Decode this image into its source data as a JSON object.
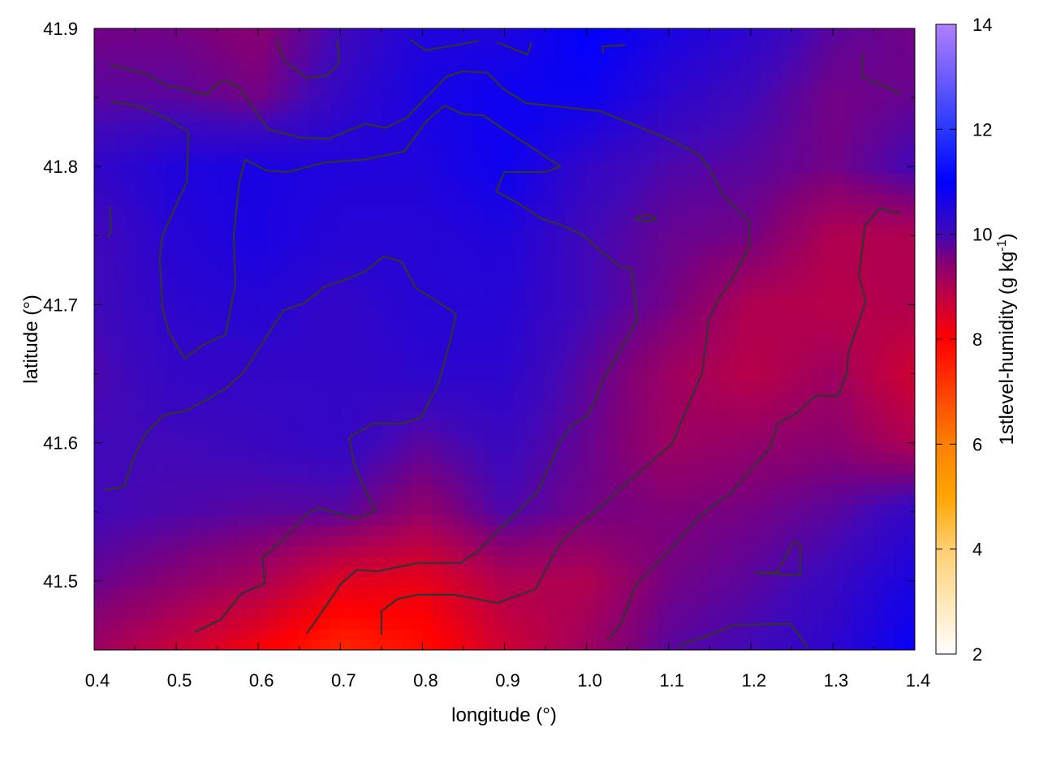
{
  "chart_data": {
    "type": "heatmap",
    "title": "",
    "xlabel": "longitude (°)",
    "ylabel": "latitude (°)",
    "colorbar_label": "1stlevel-humidity (g kg",
    "colorbar_label_sup": "-1",
    "colorbar_label_end": ")",
    "xlim": [
      0.4,
      1.4
    ],
    "ylim": [
      41.45,
      41.9
    ],
    "clim": [
      2,
      14
    ],
    "x_ticks": [
      "0.4",
      "0.5",
      "0.6",
      "0.7",
      "0.8",
      "0.9",
      "1.0",
      "1.1",
      "1.2",
      "1.3",
      "1.4"
    ],
    "y_ticks": [
      "41.5",
      "41.6",
      "41.7",
      "41.8",
      "41.9"
    ],
    "colorbar_ticks": [
      "2",
      "4",
      "6",
      "8",
      "10",
      "12",
      "14"
    ],
    "colormap": [
      {
        "v": 2,
        "c": "#ffffff"
      },
      {
        "v": 4,
        "c": "#ffcf70"
      },
      {
        "v": 5,
        "c": "#ffa500"
      },
      {
        "v": 6,
        "c": "#ff8000"
      },
      {
        "v": 7,
        "c": "#ff4000"
      },
      {
        "v": 8,
        "c": "#ff0000"
      },
      {
        "v": 9,
        "c": "#b00050"
      },
      {
        "v": 9.5,
        "c": "#800078"
      },
      {
        "v": 10,
        "c": "#4008b8"
      },
      {
        "v": 11,
        "c": "#0000ff"
      },
      {
        "v": 12,
        "c": "#2838ff"
      },
      {
        "v": 14,
        "c": "#b080ff"
      }
    ],
    "grid_lon": [
      0.4,
      0.5,
      0.6,
      0.7,
      0.8,
      0.9,
      1.0,
      1.1,
      1.2,
      1.3,
      1.4
    ],
    "grid_lat": [
      41.9,
      41.85,
      41.8,
      41.75,
      41.7,
      41.65,
      41.6,
      41.55,
      41.5,
      41.45
    ],
    "values": [
      [
        9.6,
        9.6,
        9.4,
        10.0,
        10.5,
        10.5,
        11.0,
        10.6,
        10.3,
        9.8,
        9.6
      ],
      [
        9.8,
        9.8,
        9.6,
        10.2,
        10.6,
        10.8,
        10.8,
        10.3,
        10.0,
        9.6,
        9.7
      ],
      [
        10.2,
        10.5,
        10.6,
        10.5,
        10.5,
        10.8,
        10.2,
        9.9,
        9.8,
        9.6,
        10.0
      ],
      [
        10.0,
        10.4,
        10.6,
        10.4,
        10.4,
        10.5,
        10.0,
        9.7,
        9.6,
        9.0,
        9.0
      ],
      [
        10.0,
        10.3,
        10.4,
        10.2,
        10.4,
        10.4,
        10.0,
        9.6,
        9.0,
        8.9,
        9.0
      ],
      [
        9.9,
        10.2,
        10.2,
        10.2,
        10.3,
        10.3,
        9.8,
        9.2,
        8.9,
        9.2,
        8.6
      ],
      [
        10.0,
        10.0,
        10.1,
        10.2,
        9.8,
        10.1,
        9.7,
        9.2,
        9.3,
        9.4,
        9.0
      ],
      [
        10.0,
        9.9,
        9.8,
        9.8,
        9.3,
        9.9,
        9.6,
        9.5,
        9.6,
        9.8,
        10.2
      ],
      [
        9.7,
        9.4,
        9.1,
        8.4,
        8.3,
        9.0,
        9.0,
        9.6,
        9.8,
        10.1,
        10.6
      ],
      [
        9.2,
        8.7,
        8.1,
        7.4,
        7.8,
        8.6,
        9.2,
        9.8,
        10.0,
        10.3,
        10.9
      ]
    ],
    "contour_color": "#333333",
    "contours": [
      [
        [
          0.419,
          41.874
        ],
        [
          0.463,
          41.867
        ],
        [
          0.488,
          41.859
        ],
        [
          0.537,
          41.852
        ],
        [
          0.55,
          41.86
        ],
        [
          0.562,
          41.862
        ],
        [
          0.577,
          41.857
        ],
        [
          0.612,
          41.827
        ],
        [
          0.651,
          41.821
        ],
        [
          0.686,
          41.82
        ],
        [
          0.73,
          41.831
        ],
        [
          0.755,
          41.828
        ],
        [
          0.78,
          41.835
        ],
        [
          0.829,
          41.865
        ],
        [
          0.849,
          41.869
        ],
        [
          0.879,
          41.868
        ],
        [
          0.899,
          41.856
        ],
        [
          0.926,
          41.846
        ],
        [
          1.017,
          41.84
        ],
        [
          1.096,
          41.821
        ],
        [
          1.136,
          41.809
        ],
        [
          1.151,
          41.797
        ],
        [
          1.166,
          41.78
        ],
        [
          1.198,
          41.76
        ],
        [
          1.198,
          41.742
        ],
        [
          1.18,
          41.721
        ],
        [
          1.161,
          41.704
        ],
        [
          1.149,
          41.689
        ],
        [
          1.141,
          41.651
        ],
        [
          1.104,
          41.599
        ],
        [
          1.067,
          41.58
        ],
        [
          1.017,
          41.554
        ],
        [
          0.968,
          41.528
        ],
        [
          0.938,
          41.494
        ],
        [
          0.891,
          41.484
        ],
        [
          0.839,
          41.49
        ],
        [
          0.795,
          41.49
        ],
        [
          0.77,
          41.487
        ],
        [
          0.75,
          41.478
        ],
        [
          0.75,
          41.461
        ]
      ],
      [
        [
          0.419,
          41.847
        ],
        [
          0.453,
          41.844
        ],
        [
          0.488,
          41.835
        ],
        [
          0.515,
          41.825
        ],
        [
          0.513,
          41.789
        ],
        [
          0.483,
          41.75
        ],
        [
          0.48,
          41.733
        ],
        [
          0.483,
          41.698
        ],
        [
          0.491,
          41.68
        ],
        [
          0.51,
          41.661
        ],
        [
          0.533,
          41.671
        ],
        [
          0.56,
          41.678
        ],
        [
          0.572,
          41.715
        ],
        [
          0.57,
          41.75
        ],
        [
          0.577,
          41.789
        ],
        [
          0.584,
          41.805
        ],
        [
          0.61,
          41.797
        ],
        [
          0.636,
          41.796
        ],
        [
          0.681,
          41.803
        ],
        [
          0.73,
          41.805
        ],
        [
          0.778,
          41.811
        ],
        [
          0.805,
          41.833
        ],
        [
          0.827,
          41.844
        ],
        [
          0.849,
          41.838
        ],
        [
          0.874,
          41.837
        ],
        [
          0.899,
          41.827
        ],
        [
          0.928,
          41.816
        ],
        [
          0.968,
          41.8
        ],
        [
          0.95,
          41.796
        ],
        [
          0.928,
          41.796
        ],
        [
          0.9,
          41.796
        ],
        [
          0.89,
          41.782
        ],
        [
          0.918,
          41.773
        ],
        [
          0.946,
          41.762
        ],
        [
          0.968,
          41.758
        ],
        [
          0.997,
          41.75
        ],
        [
          1.019,
          41.738
        ],
        [
          1.04,
          41.728
        ],
        [
          1.055,
          41.726
        ],
        [
          1.062,
          41.689
        ],
        [
          1.042,
          41.668
        ],
        [
          1.022,
          41.648
        ],
        [
          1.012,
          41.633
        ],
        [
          1.002,
          41.62
        ],
        [
          0.983,
          41.613
        ],
        [
          0.968,
          41.601
        ],
        [
          0.941,
          41.565
        ],
        [
          0.913,
          41.548
        ],
        [
          0.891,
          41.536
        ],
        [
          0.869,
          41.522
        ],
        [
          0.846,
          41.513
        ],
        [
          0.795,
          41.513
        ],
        [
          0.745,
          41.507
        ],
        [
          0.72,
          41.508
        ],
        [
          0.701,
          41.498
        ],
        [
          0.671,
          41.472
        ],
        [
          0.659,
          41.462
        ]
      ],
      [
        [
          0.412,
          41.566
        ],
        [
          0.436,
          41.568
        ],
        [
          0.448,
          41.589
        ],
        [
          0.463,
          41.607
        ],
        [
          0.485,
          41.62
        ],
        [
          0.511,
          41.623
        ],
        [
          0.54,
          41.632
        ],
        [
          0.562,
          41.64
        ],
        [
          0.582,
          41.651
        ],
        [
          0.607,
          41.674
        ],
        [
          0.631,
          41.696
        ],
        [
          0.656,
          41.701
        ],
        [
          0.681,
          41.713
        ],
        [
          0.706,
          41.718
        ],
        [
          0.73,
          41.724
        ],
        [
          0.753,
          41.735
        ],
        [
          0.775,
          41.731
        ],
        [
          0.792,
          41.712
        ],
        [
          0.819,
          41.702
        ],
        [
          0.841,
          41.693
        ],
        [
          0.834,
          41.674
        ],
        [
          0.819,
          41.642
        ],
        [
          0.798,
          41.618
        ],
        [
          0.775,
          41.614
        ],
        [
          0.74,
          41.614
        ],
        [
          0.711,
          41.604
        ],
        [
          0.716,
          41.586
        ],
        [
          0.727,
          41.57
        ],
        [
          0.743,
          41.551
        ],
        [
          0.72,
          41.545
        ],
        [
          0.673,
          41.553
        ],
        [
          0.656,
          41.547
        ],
        [
          0.631,
          41.53
        ],
        [
          0.605,
          41.517
        ],
        [
          0.608,
          41.498
        ],
        [
          0.58,
          41.491
        ],
        [
          0.554,
          41.472
        ],
        [
          0.523,
          41.463
        ]
      ],
      [
        [
          1.381,
          41.766
        ],
        [
          1.358,
          41.77
        ],
        [
          1.339,
          41.757
        ],
        [
          1.332,
          41.721
        ],
        [
          1.34,
          41.702
        ],
        [
          1.319,
          41.665
        ],
        [
          1.317,
          41.65
        ],
        [
          1.306,
          41.634
        ],
        [
          1.279,
          41.634
        ],
        [
          1.255,
          41.621
        ],
        [
          1.233,
          41.614
        ],
        [
          1.223,
          41.596
        ],
        [
          1.195,
          41.577
        ],
        [
          1.177,
          41.564
        ],
        [
          1.151,
          41.553
        ],
        [
          1.134,
          41.544
        ],
        [
          1.106,
          41.525
        ],
        [
          1.06,
          41.497
        ],
        [
          1.042,
          41.469
        ],
        [
          1.025,
          41.457
        ]
      ],
      [
        [
          0.622,
          41.893
        ],
        [
          0.631,
          41.877
        ],
        [
          0.659,
          41.864
        ],
        [
          0.684,
          41.866
        ],
        [
          0.699,
          41.875
        ],
        [
          0.696,
          41.892
        ]
      ],
      [
        [
          0.785,
          41.892
        ],
        [
          0.804,
          41.884
        ],
        [
          0.869,
          41.891
        ]
      ],
      [
        [
          0.891,
          41.89
        ],
        [
          0.928,
          41.881
        ],
        [
          0.933,
          41.89
        ]
      ],
      [
        [
          1.02,
          41.882
        ],
        [
          1.02,
          41.887
        ],
        [
          1.047,
          41.888
        ]
      ],
      [
        [
          1.336,
          41.882
        ],
        [
          1.336,
          41.865
        ],
        [
          1.383,
          41.853
        ]
      ],
      [
        [
          1.205,
          41.506
        ],
        [
          1.232,
          41.506
        ],
        [
          1.253,
          41.529
        ],
        [
          1.261,
          41.526
        ],
        [
          1.26,
          41.504
        ],
        [
          1.205,
          41.506
        ]
      ],
      [
        [
          1.059,
          41.762
        ],
        [
          1.072,
          41.765
        ],
        [
          1.086,
          41.762
        ],
        [
          1.072,
          41.76
        ],
        [
          1.059,
          41.762
        ]
      ],
      [
        [
          1.111,
          41.453
        ],
        [
          1.146,
          41.46
        ],
        [
          1.18,
          41.468
        ],
        [
          1.249,
          41.469
        ],
        [
          1.269,
          41.452
        ]
      ],
      [
        [
          0.419,
          41.771
        ],
        [
          0.421,
          41.753
        ],
        [
          0.416,
          41.749
        ]
      ]
    ]
  }
}
